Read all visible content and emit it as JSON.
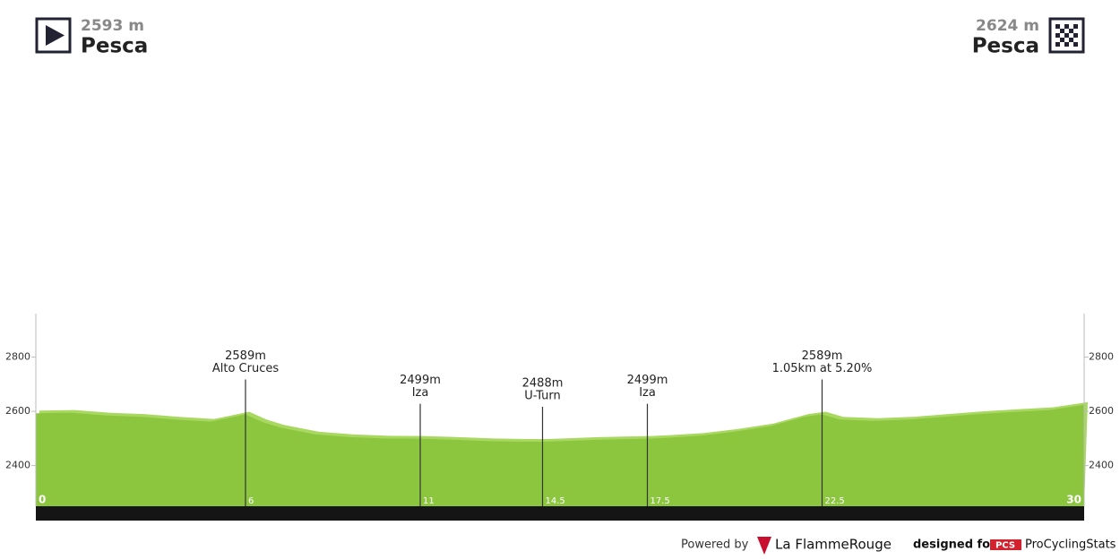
{
  "chart_data": {
    "type": "area",
    "start": {
      "elevation": "2593 m",
      "name": "Pesca"
    },
    "finish": {
      "elevation": "2624 m",
      "name": "Pesca"
    },
    "x": [
      0,
      1,
      2,
      3,
      4,
      5,
      5.5,
      6,
      6.5,
      7,
      8,
      9,
      10,
      11,
      12,
      13,
      14,
      14.5,
      15,
      16,
      17,
      17.5,
      18,
      19,
      20,
      21,
      22,
      22.5,
      23,
      24,
      25,
      26,
      27,
      28,
      29,
      30
    ],
    "values": [
      2593,
      2595,
      2585,
      2580,
      2570,
      2562,
      2575,
      2589,
      2560,
      2540,
      2515,
      2505,
      2500,
      2499,
      2495,
      2490,
      2488,
      2488,
      2490,
      2495,
      2498,
      2499,
      2502,
      2510,
      2525,
      2545,
      2580,
      2589,
      2570,
      2565,
      2570,
      2580,
      2590,
      2598,
      2605,
      2624
    ],
    "color": "#8cc63f",
    "xlim": [
      0,
      30
    ],
    "xticks": [
      0,
      30
    ],
    "ylim": [
      2250,
      2965
    ],
    "yticks": [
      2400,
      2600,
      2800
    ],
    "markers": [
      {
        "x": 6,
        "elevation": {
          "value": 2589,
          "label": "2589m"
        },
        "name": "Alto Cruces"
      },
      {
        "x": 11,
        "elevation": {
          "value": 2499,
          "label": "2499m"
        },
        "name": "Iza"
      },
      {
        "x": 14.5,
        "elevation": {
          "value": 2488,
          "label": "2488m"
        },
        "name": "U-Turn"
      },
      {
        "x": 17.5,
        "elevation": {
          "value": 2499,
          "label": "2499m"
        },
        "name": "Iza"
      },
      {
        "x": 22.5,
        "elevation": {
          "value": 2589,
          "label": "2589m"
        },
        "name": "1.05km at 5.20%"
      }
    ],
    "footer": {
      "powered": "Powered by",
      "brand": "La FlammeRouge",
      "designed": "designed for",
      "pcs": "PCS",
      "site": "ProCyclingStats"
    }
  }
}
